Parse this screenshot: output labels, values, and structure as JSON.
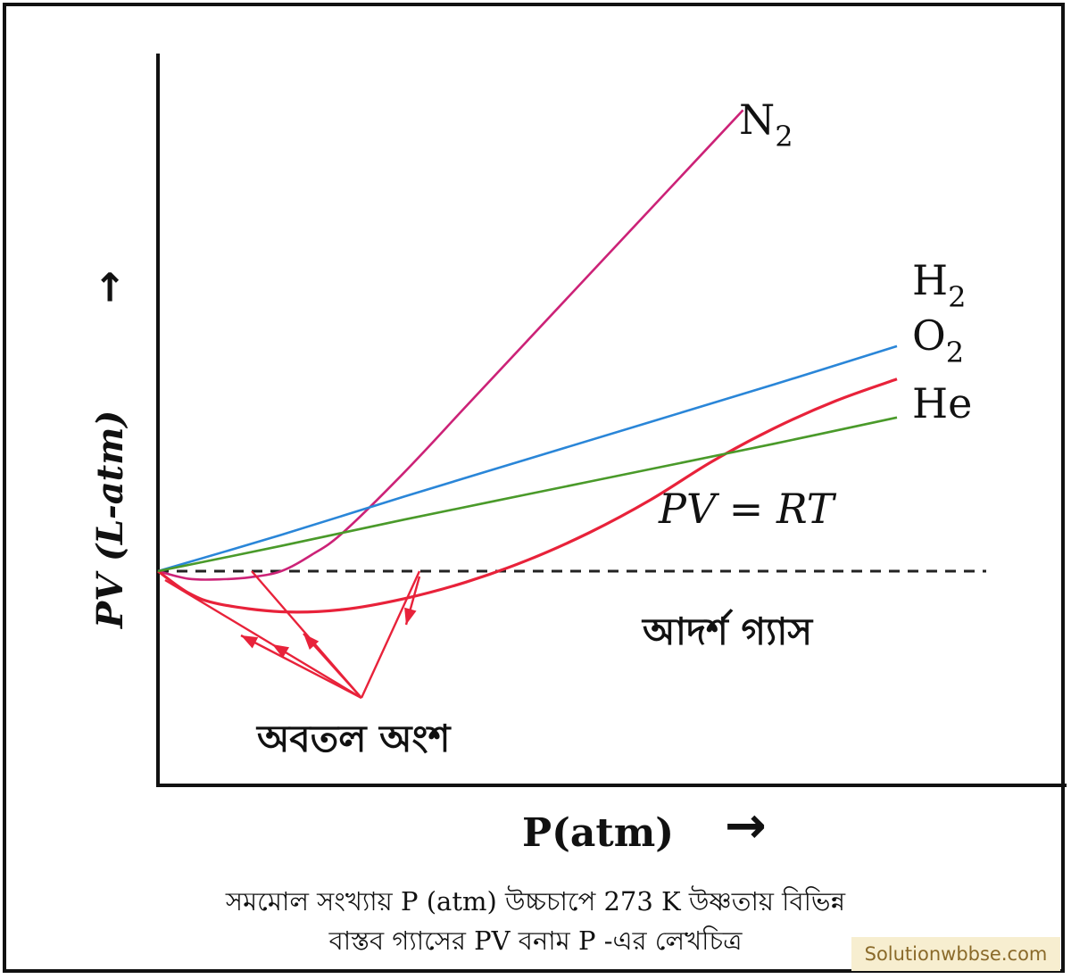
{
  "chart_data": {
    "type": "line",
    "xlabel": "P(atm)",
    "ylabel": "PV (L-atm)",
    "x_arrow": "→",
    "y_arrow": "→",
    "annotations": {
      "equation": "PV = RT",
      "ideal_gas": "আদর্শ গ্যাস",
      "concave": "অবতল অংশ"
    },
    "ideal_line": {
      "name": "আদর্শ গ্যাস",
      "x": [
        0,
        100
      ],
      "y": [
        0,
        0
      ],
      "color": "#222222"
    },
    "series": [
      {
        "name": "N2",
        "label_main": "N",
        "label_sub": "2",
        "color": "#cc2277",
        "x": [
          0,
          5,
          10,
          15,
          20,
          25,
          30,
          40,
          50,
          60,
          70,
          80,
          90,
          95
        ],
        "y": [
          0,
          -0.7,
          -0.75,
          -0.55,
          0,
          1.5,
          3.5,
          9,
          15,
          21,
          27,
          33,
          39,
          42
        ]
      },
      {
        "name": "H2",
        "label_main": "H",
        "label_sub": "2",
        "color": "#2a86d8",
        "x": [
          0,
          20,
          40,
          60,
          80,
          100,
          120
        ],
        "y": [
          0,
          3.3,
          6.8,
          10.2,
          13.6,
          17,
          20.5
        ]
      },
      {
        "name": "O2",
        "label_main": "O",
        "label_sub": "2",
        "color": "#e8223a",
        "x": [
          0,
          5,
          10,
          20,
          30,
          40,
          50,
          60,
          70,
          80,
          90,
          100,
          110,
          120
        ],
        "y": [
          0,
          -2,
          -3,
          -3.7,
          -3.5,
          -2.5,
          -1,
          1,
          3.5,
          6.5,
          10,
          13,
          15.5,
          17.5
        ]
      },
      {
        "name": "He",
        "label_main": "He",
        "label_sub": "",
        "color": "#4a9a2a",
        "x": [
          0,
          20,
          40,
          60,
          80,
          100,
          120
        ],
        "y": [
          0,
          2.3,
          4.7,
          7,
          9.3,
          11.6,
          14
        ]
      }
    ]
  },
  "caption": {
    "line1": "সমমোল সংখ্যায় P (atm) উচ্চচাপে 273 K উষ্ণতায় বিভিন্ন",
    "line2": "বাস্তব গ্যাসের PV বনাম P -এর লেখচিত্র"
  },
  "watermark": "Solutionwbbse.com",
  "colors": {
    "pointer": "#e8223a",
    "axis": "#111111",
    "background": "#ffffff"
  }
}
